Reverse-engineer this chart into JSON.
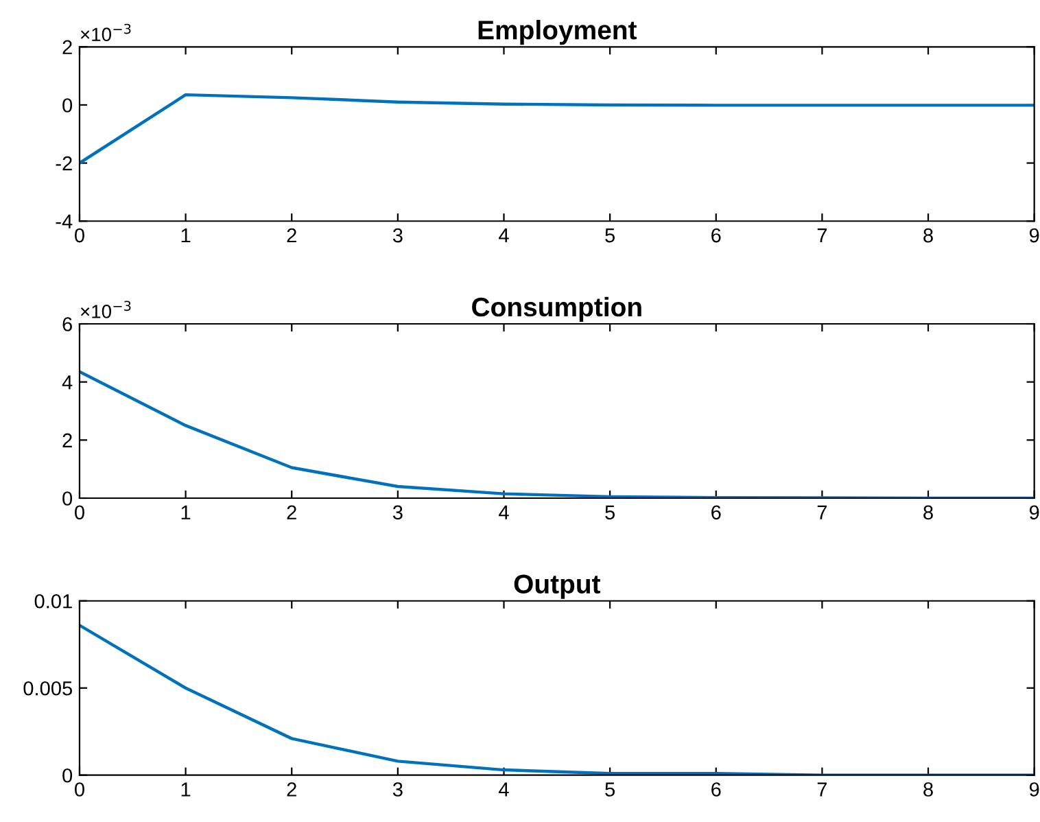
{
  "chart_data": [
    {
      "type": "line",
      "title": "Employment",
      "x": [
        0,
        1,
        2,
        3,
        4,
        5,
        6,
        7,
        8,
        9
      ],
      "xlim": [
        0,
        9
      ],
      "xticks": [
        0,
        1,
        2,
        3,
        4,
        5,
        6,
        7,
        8,
        9
      ],
      "ylim": [
        -4,
        2
      ],
      "yticks": [
        -4,
        -2,
        0,
        2
      ],
      "series": [
        {
          "color": "#0072bd",
          "values": [
            -2,
            0.35,
            0.25,
            0.1,
            0.03,
            0.0,
            -0.01,
            -0.01,
            -0.01,
            -0.01
          ]
        }
      ],
      "annotations": [
        "×10$^{−3}$"
      ],
      "grid": false,
      "legend": false
    },
    {
      "type": "line",
      "title": "Consumption",
      "x": [
        0,
        1,
        2,
        3,
        4,
        5,
        6,
        7,
        8,
        9
      ],
      "xlim": [
        0,
        9
      ],
      "xticks": [
        0,
        1,
        2,
        3,
        4,
        5,
        6,
        7,
        8,
        9
      ],
      "ylim": [
        0,
        6
      ],
      "yticks": [
        0,
        2,
        4,
        6
      ],
      "series": [
        {
          "color": "#0072bd",
          "values": [
            4.35,
            2.5,
            1.05,
            0.4,
            0.15,
            0.05,
            0.02,
            0.01,
            0.0,
            0.0
          ]
        }
      ],
      "annotations": [
        "×10$^{−3}$"
      ],
      "grid": false,
      "legend": false
    },
    {
      "type": "line",
      "title": "Output",
      "x": [
        0,
        1,
        2,
        3,
        4,
        5,
        6,
        7,
        8,
        9
      ],
      "xlim": [
        0,
        9
      ],
      "xticks": [
        0,
        1,
        2,
        3,
        4,
        5,
        6,
        7,
        8,
        9
      ],
      "ylim": [
        0,
        0.01
      ],
      "yticks": [
        0,
        0.005,
        0.01
      ],
      "series": [
        {
          "color": "#0072bd",
          "values": [
            0.0086,
            0.005,
            0.0021,
            0.0008,
            0.0003,
            0.0001,
            0.0001,
            0.0,
            0.0,
            0.0
          ]
        }
      ],
      "grid": false,
      "legend": false
    }
  ]
}
